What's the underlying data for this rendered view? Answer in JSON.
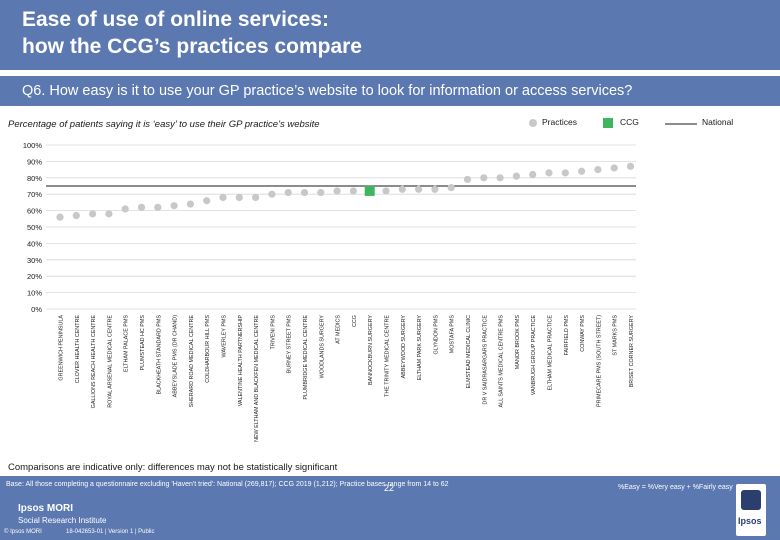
{
  "header": {
    "title_line1": "Ease of use of online services:",
    "title_line2": "how the CCG’s practices compare"
  },
  "question": "Q6. How easy is it to use your GP practice’s website to look for information or access services?",
  "subtitle": "Percentage of patients saying it is ‘easy’ to use their GP practice’s website",
  "legend": {
    "practices": "Practices",
    "ccg": "CCG",
    "national": "National"
  },
  "colors": {
    "header_bg": "#5b78b0",
    "practice_marker": "#c8c8c8",
    "ccg_marker": "#3fb560",
    "national_line": "#1a1a1a"
  },
  "chart_data": {
    "type": "scatter",
    "title": "Percentage of patients saying it is ‘easy’ to use their GP practice’s website",
    "ylim": [
      0,
      100
    ],
    "yticks": [
      "0%",
      "10%",
      "20%",
      "30%",
      "40%",
      "50%",
      "60%",
      "70%",
      "80%",
      "90%",
      "100%"
    ],
    "national_value": 75,
    "ccg_index": 19,
    "categories": [
      "GREENWICH PENINSULA",
      "CLOVER HEALTH CENTRE",
      "GALLIONS REACH HEALTH CENTRE",
      "ROYAL ARSENAL MEDICAL CENTRE",
      "ELTHAM PALACE PMS",
      "PLUMSTEAD HC PMS",
      "BLACKHEATH STANDARD PMS",
      "ABBEYSLADE PMS (DR CHAND)",
      "SHERARD ROAD MEDICAL CENTRE",
      "COLDHARBOUR HILL PMS",
      "WAVERLEY PMS",
      "VALENTINE HEALTH PARTNERSHIP",
      "NEW ELTHAM AND BLACKFEN MEDICAL CENTRE",
      "TRIVENI PMS",
      "BURNEY STREET PMS",
      "PLUMBRIDGE MEDICAL CENTRE",
      "WOODLANDS SURGERY",
      "AT MEDICS",
      "CCG",
      "BANNOCKBURN SURGERY",
      "THE TRINITY MEDICAL CENTRE",
      "ABBEYWOOD SURGERY",
      "ELTHAM PARK SURGERY",
      "GLYNDON PMS",
      "MOSTAFA PMS",
      "ELMSTEAD MEDICAL CLINIC",
      "DR V SAIDRASARGARS PRACTICE",
      "ALL SAINTS MEDICAL CENTRE PMS",
      "MANOR BROOK PMS",
      "VANBRUGH GROUP PRACTICE",
      "ELTHAM MEDICAL PRACTICE",
      "FAIRFIELD PMS",
      "CONWAY PMS",
      "PRIMECARE PMS (SOUTH STREET)",
      "ST MARKS PMS",
      "BRISET CORNER SURGERY"
    ],
    "values": [
      56,
      57,
      58,
      58,
      61,
      62,
      62,
      63,
      64,
      66,
      68,
      68,
      68,
      70,
      71,
      71,
      71,
      72,
      72,
      72,
      72,
      73,
      73,
      73,
      74,
      79,
      80,
      80,
      81,
      82,
      83,
      83,
      84,
      85,
      86,
      87
    ]
  },
  "comparisons_note": "Comparisons are indicative only: differences may not be statistically significant",
  "footer": {
    "base": "Base: All those completing a questionnaire excluding 'Haven't tried': National (269,817); CCG 2019 (1,212); Practice bases range from 14 to 62",
    "formula": "%Easy = %Very easy + %Fairly easy",
    "brand_line1": "Ipsos MORI",
    "brand_line2": "Social Research Institute",
    "copyright": "© Ipsos MORI",
    "job_ref": "18-042653-01 | Version 1 | Public",
    "page_number": "22",
    "logo_text": "Ipsos"
  }
}
